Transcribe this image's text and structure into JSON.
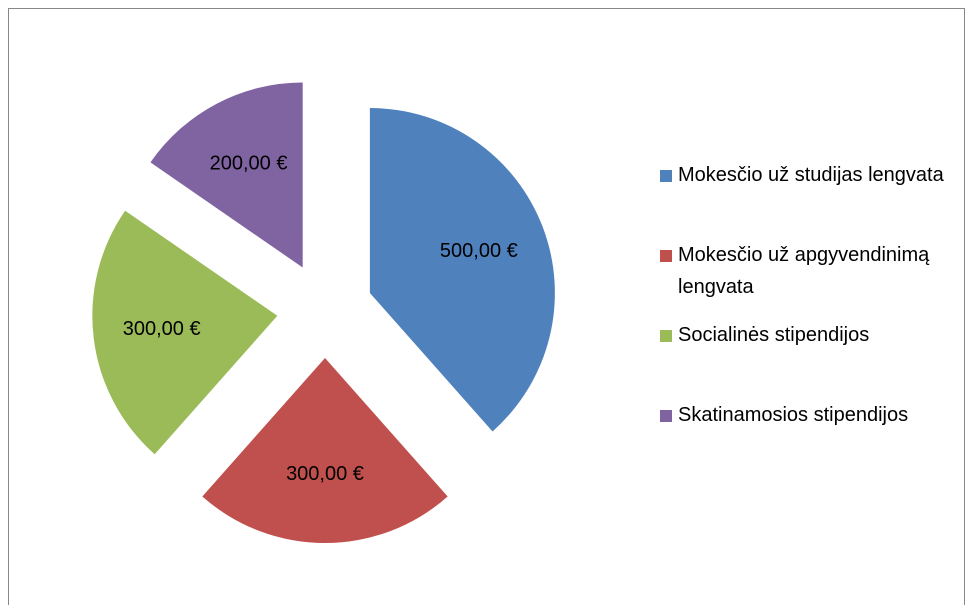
{
  "chart_data": {
    "type": "pie",
    "categories": [
      "Mokesčio už studijas lengvata",
      "Mokesčio už apgyvendinimą lengvata",
      "Socialinės stipendijos",
      "Skatinamosios stipendijos"
    ],
    "values": [
      500,
      300,
      300,
      200
    ],
    "value_labels": [
      "500,00 €",
      "300,00 €",
      "300,00 €",
      "200,00 €"
    ],
    "colors": [
      "#4f81bd",
      "#c0504d",
      "#9bbb59",
      "#8064a2"
    ],
    "exploded": true,
    "legend": "right"
  }
}
